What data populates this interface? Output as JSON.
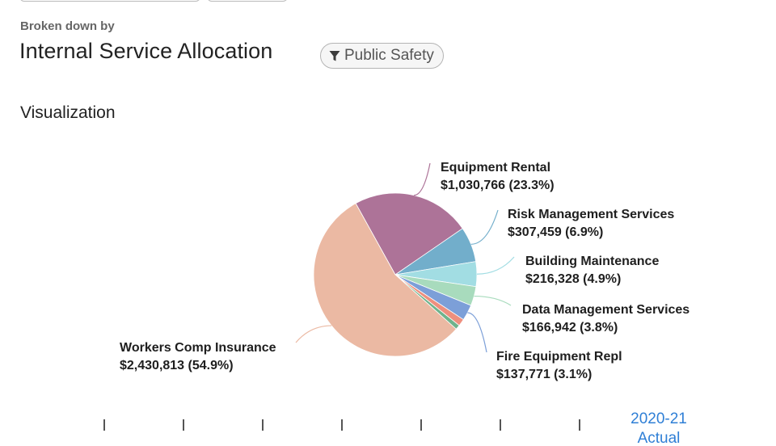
{
  "header": {
    "broken_down_label": "Broken down by",
    "title": "Internal Service Allocation",
    "filter_label": "Public Safety"
  },
  "section": {
    "heading": "Visualization"
  },
  "chart_data": {
    "type": "pie",
    "title": "",
    "slices": [
      {
        "label": "Equipment Rental",
        "value_text": "$1,030,766 (23.3%)",
        "value": 1030766,
        "percent": 23.3,
        "color": "#ad7398"
      },
      {
        "label": "Risk Management Services",
        "value_text": "$307,459 (6.9%)",
        "value": 307459,
        "percent": 6.9,
        "color": "#72aecb"
      },
      {
        "label": "Building Maintenance",
        "value_text": "$216,328 (4.9%)",
        "value": 216328,
        "percent": 4.9,
        "color": "#a2dde3"
      },
      {
        "label": "Data Management Services",
        "value_text": "$166,942 (3.8%)",
        "value": 166942,
        "percent": 3.8,
        "color": "#a8dbbd"
      },
      {
        "label": "Fire Equipment Repl",
        "value_text": "$137,771 (3.1%)",
        "value": 137771,
        "percent": 3.1,
        "color": "#7c9fd8"
      },
      {
        "label": "",
        "value_text": "",
        "value": 62000,
        "percent": 1.4,
        "color": "#ee8f7e"
      },
      {
        "label": "",
        "value_text": "",
        "value": 40000,
        "percent": 0.9,
        "color": "#6fb38c"
      },
      {
        "label": "Workers Comp Insurance",
        "value_text": "$2,430,813 (54.9%)",
        "value": 2430813,
        "percent": 54.9,
        "color": "#ebb9a3"
      }
    ]
  },
  "timeline": {
    "year_label": "2020-21",
    "period_label": "Actual",
    "tick_color": "#555555"
  }
}
